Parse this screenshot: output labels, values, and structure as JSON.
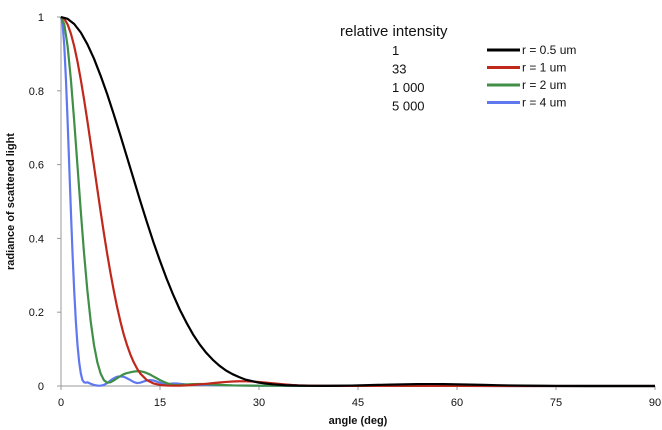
{
  "chart_data": {
    "type": "line",
    "title": "",
    "xlabel": "angle (deg)",
    "ylabel": "radiance of scattered light",
    "xlim": [
      0,
      90
    ],
    "ylim": [
      0,
      1
    ],
    "x_ticks": [
      0,
      15,
      30,
      45,
      60,
      75,
      90
    ],
    "y_ticks": [
      0,
      0.2,
      0.4,
      0.6,
      0.8,
      1
    ],
    "y_tick_labels": [
      "0",
      "0.2",
      "0.4",
      "0.6",
      "0.8",
      "1"
    ],
    "grid": false,
    "legend_position": "top-right",
    "annotation": {
      "title": "relative intensity",
      "values": [
        "1",
        "33",
        "1 000",
        "5 000"
      ]
    },
    "series": [
      {
        "name": "r = 0.5 um",
        "color": "#000000",
        "x": [
          0,
          1,
          2,
          3,
          4,
          5,
          6,
          7,
          8,
          9,
          10,
          11,
          12,
          13,
          14,
          15,
          16,
          17,
          18,
          19,
          20,
          21,
          22,
          23,
          24,
          25,
          26,
          27,
          28,
          30,
          32,
          34,
          36,
          38,
          40,
          42,
          44,
          46,
          48,
          50,
          52,
          54,
          56,
          58,
          60,
          62,
          64,
          66,
          68,
          70,
          72,
          75,
          80,
          85,
          90
        ],
        "y": [
          1.0,
          0.995,
          0.981,
          0.958,
          0.926,
          0.887,
          0.841,
          0.791,
          0.736,
          0.679,
          0.62,
          0.561,
          0.502,
          0.445,
          0.39,
          0.339,
          0.291,
          0.247,
          0.207,
          0.172,
          0.14,
          0.113,
          0.09,
          0.071,
          0.055,
          0.042,
          0.032,
          0.024,
          0.017,
          0.009,
          0.0045,
          0.002,
          0.001,
          0.0005,
          0.0003,
          0.0006,
          0.0012,
          0.002,
          0.003,
          0.0038,
          0.0045,
          0.005,
          0.0052,
          0.005,
          0.0045,
          0.0038,
          0.003,
          0.0022,
          0.0015,
          0.001,
          0.0006,
          0.0002,
          0.0,
          0.0,
          0.0
        ]
      },
      {
        "name": "r = 1 um",
        "color": "#c0281c",
        "x": [
          0,
          0.5,
          1,
          1.5,
          2,
          2.5,
          3,
          3.5,
          4,
          4.5,
          5,
          5.5,
          6,
          6.5,
          7,
          7.5,
          8,
          8.5,
          9,
          9.5,
          10,
          10.5,
          11,
          11.5,
          12,
          13,
          14,
          15,
          16,
          17,
          18,
          19,
          20,
          21,
          22,
          23,
          24,
          25,
          26,
          27,
          28,
          29,
          30,
          31,
          32,
          33,
          34,
          35,
          36,
          38,
          40,
          45,
          50,
          55,
          60,
          70,
          80,
          90
        ],
        "y": [
          1.0,
          0.995,
          0.98,
          0.955,
          0.921,
          0.879,
          0.83,
          0.776,
          0.718,
          0.657,
          0.596,
          0.534,
          0.473,
          0.414,
          0.358,
          0.306,
          0.258,
          0.214,
          0.175,
          0.14,
          0.111,
          0.086,
          0.065,
          0.048,
          0.034,
          0.016,
          0.007,
          0.003,
          0.0012,
          0.0008,
          0.001,
          0.0018,
          0.003,
          0.0045,
          0.006,
          0.0078,
          0.0095,
          0.011,
          0.0122,
          0.0128,
          0.0127,
          0.012,
          0.0108,
          0.0092,
          0.0075,
          0.0058,
          0.0042,
          0.0028,
          0.0018,
          0.0007,
          0.0004,
          0.0003,
          0.0004,
          0.0003,
          0.0002,
          0.0,
          0.0,
          0.0
        ]
      },
      {
        "name": "r = 2 um",
        "color": "#3f8f47",
        "x": [
          0,
          0.5,
          1,
          1.5,
          2,
          2.5,
          3,
          3.5,
          4,
          4.5,
          5,
          5.5,
          6,
          6.5,
          7,
          7.5,
          8,
          8.5,
          9,
          9.5,
          10,
          10.5,
          11,
          11.5,
          12,
          12.5,
          13,
          13.5,
          14,
          14.5,
          15,
          15.5,
          16,
          16.5,
          17,
          17.5,
          18,
          19,
          20,
          21,
          22,
          24,
          26,
          30,
          40,
          50,
          60,
          70,
          80,
          90
        ],
        "y": [
          1.0,
          0.98,
          0.921,
          0.83,
          0.718,
          0.596,
          0.473,
          0.358,
          0.258,
          0.175,
          0.111,
          0.065,
          0.034,
          0.016,
          0.009,
          0.01,
          0.015,
          0.021,
          0.027,
          0.032,
          0.035,
          0.037,
          0.039,
          0.04,
          0.04,
          0.038,
          0.035,
          0.031,
          0.026,
          0.021,
          0.016,
          0.012,
          0.008,
          0.005,
          0.003,
          0.0025,
          0.003,
          0.004,
          0.005,
          0.0055,
          0.005,
          0.003,
          0.0015,
          0.0008,
          0.0004,
          0.0003,
          0.0002,
          0.0001,
          0.0,
          0.0
        ]
      },
      {
        "name": "r = 4 um",
        "color": "#5f78f0",
        "x": [
          0,
          0.25,
          0.5,
          0.75,
          1,
          1.25,
          1.5,
          1.75,
          2,
          2.25,
          2.5,
          2.75,
          3,
          3.25,
          3.5,
          3.75,
          4,
          4.5,
          5,
          5.5,
          6,
          6.5,
          7,
          7.5,
          8,
          8.5,
          9,
          9.5,
          10,
          10.5,
          11,
          11.5,
          12,
          12.5,
          13,
          13.5,
          14,
          14.5,
          15,
          15.5,
          16,
          16.5,
          17,
          17.5,
          18,
          19,
          20,
          21,
          22,
          24,
          26,
          30,
          40,
          50,
          60,
          70,
          80,
          90
        ],
        "y": [
          1.0,
          0.98,
          0.921,
          0.83,
          0.718,
          0.596,
          0.473,
          0.358,
          0.258,
          0.175,
          0.111,
          0.065,
          0.034,
          0.016,
          0.01,
          0.009,
          0.01,
          0.006,
          0.003,
          0.001,
          0.0008,
          0.003,
          0.008,
          0.015,
          0.021,
          0.025,
          0.026,
          0.025,
          0.021,
          0.016,
          0.011,
          0.008,
          0.009,
          0.012,
          0.015,
          0.016,
          0.015,
          0.012,
          0.009,
          0.006,
          0.005,
          0.006,
          0.007,
          0.007,
          0.006,
          0.004,
          0.003,
          0.003,
          0.003,
          0.002,
          0.0015,
          0.0008,
          0.0003,
          0.0002,
          0.0001,
          0.0,
          0.0,
          0.0
        ]
      }
    ]
  }
}
